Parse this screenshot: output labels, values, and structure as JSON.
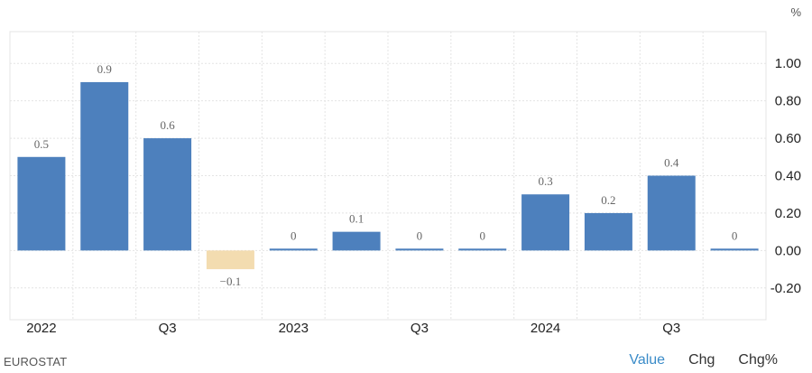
{
  "chart_data": {
    "type": "bar",
    "unit": "%",
    "categories": [
      "2022 Q1",
      "2022 Q2",
      "2022 Q3",
      "2022 Q4",
      "2023 Q1",
      "2023 Q2",
      "2023 Q3",
      "2023 Q4",
      "2024 Q1",
      "2024 Q2",
      "2024 Q3",
      "2024 Q4"
    ],
    "values": [
      0.5,
      0.9,
      0.6,
      -0.1,
      0.01,
      0.1,
      0.01,
      0.01,
      0.3,
      0.2,
      0.4,
      0.01
    ],
    "data_labels": [
      "0.5",
      "0.9",
      "0.6",
      "−0.1",
      "0",
      "0.1",
      "0",
      "0",
      "0.3",
      "0.2",
      "0.4",
      "0"
    ],
    "x_tick_labels": [
      {
        "index": 0,
        "text": "2022"
      },
      {
        "index": 2,
        "text": "Q3"
      },
      {
        "index": 4,
        "text": "2023"
      },
      {
        "index": 6,
        "text": "Q3"
      },
      {
        "index": 8,
        "text": "2024"
      },
      {
        "index": 10,
        "text": "Q3"
      }
    ],
    "y_ticks": [
      {
        "value": 1.0,
        "text": "1.00"
      },
      {
        "value": 0.8,
        "text": "0.80"
      },
      {
        "value": 0.6,
        "text": "0.60"
      },
      {
        "value": 0.4,
        "text": "0.40"
      },
      {
        "value": 0.2,
        "text": "0.20"
      },
      {
        "value": 0.0,
        "text": "0.00"
      },
      {
        "value": -0.2,
        "text": "-0.20"
      }
    ],
    "ylim": [
      -0.37,
      1.17
    ],
    "grid": true,
    "y_axis_side": "right",
    "colors": {
      "positive": "#4d80bd",
      "negative": "#f3dcb0",
      "grid": "#e4e4e4",
      "label": "#666666",
      "tick": "#222222"
    }
  },
  "footer": {
    "source": "EUROSTAT",
    "tabs": [
      "Value",
      "Chg",
      "Chg%"
    ],
    "active_tab": "Value"
  }
}
